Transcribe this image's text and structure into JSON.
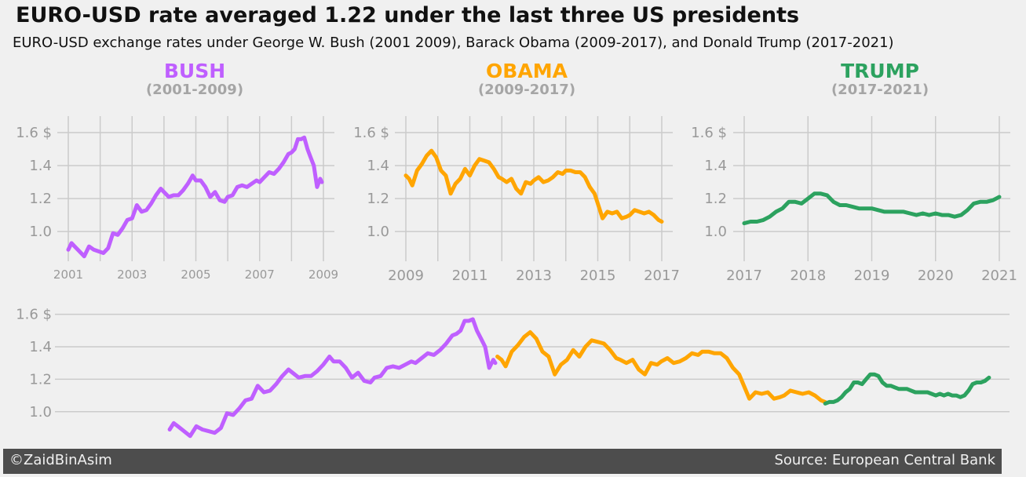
{
  "title": "EURO-USD rate averaged 1.22 under the last three US presidents",
  "subtitle": "EURO-USD exchange rates under George W. Bush (2001 2009), Barack Obama (2009-2017), and Donald Trump (2017-2021)",
  "footer": {
    "credit": "©ZaidBinAsim",
    "source": "Source: European Central Bank"
  },
  "colors": {
    "background": "#f0f0f0",
    "grid": "#cbcbcb",
    "tick": "#999999",
    "subheading": "#a5a5a5",
    "footer_bg": "#4d4d4d",
    "footer_text": "#f0f0f0",
    "bush": "#bf5fff",
    "obama": "#ffa500",
    "trump": "#2ca25f"
  },
  "chart_data": [
    {
      "type": "line",
      "panel": "bush",
      "heading": "BUSH",
      "subheading": "(2001-2009)",
      "color": "#bf5fff",
      "xlim": [
        2001,
        2009
      ],
      "ylim": [
        0.82,
        1.7
      ],
      "yticks": [
        "1.0",
        "1.2",
        "1.4",
        "1.6 $"
      ],
      "xticks": [
        "2001",
        "2003",
        "2005",
        "2007",
        "2009"
      ],
      "grid": true,
      "x": [
        2001.0,
        2001.1,
        2001.2,
        2001.35,
        2001.5,
        2001.65,
        2001.8,
        2001.95,
        2002.1,
        2002.25,
        2002.4,
        2002.55,
        2002.7,
        2002.85,
        2003.0,
        2003.15,
        2003.3,
        2003.45,
        2003.6,
        2003.75,
        2003.9,
        2004.0,
        2004.15,
        2004.3,
        2004.45,
        2004.6,
        2004.75,
        2004.9,
        2005.0,
        2005.15,
        2005.3,
        2005.45,
        2005.6,
        2005.75,
        2005.9,
        2006.0,
        2006.15,
        2006.3,
        2006.45,
        2006.6,
        2006.75,
        2006.9,
        2007.0,
        2007.15,
        2007.3,
        2007.45,
        2007.6,
        2007.75,
        2007.9,
        2008.0,
        2008.1,
        2008.2,
        2008.3,
        2008.4,
        2008.5,
        2008.6,
        2008.7,
        2008.8,
        2008.9,
        2008.95
      ],
      "y": [
        0.89,
        0.93,
        0.91,
        0.88,
        0.85,
        0.91,
        0.89,
        0.88,
        0.87,
        0.9,
        0.99,
        0.98,
        1.02,
        1.07,
        1.08,
        1.16,
        1.12,
        1.13,
        1.17,
        1.22,
        1.26,
        1.24,
        1.21,
        1.22,
        1.22,
        1.25,
        1.29,
        1.34,
        1.31,
        1.31,
        1.27,
        1.21,
        1.24,
        1.19,
        1.18,
        1.21,
        1.22,
        1.27,
        1.28,
        1.27,
        1.29,
        1.31,
        1.3,
        1.33,
        1.36,
        1.35,
        1.38,
        1.42,
        1.47,
        1.48,
        1.5,
        1.56,
        1.56,
        1.57,
        1.5,
        1.45,
        1.4,
        1.27,
        1.32,
        1.3
      ]
    },
    {
      "type": "line",
      "panel": "obama",
      "heading": "OBAMA",
      "subheading": "(2009-2017)",
      "color": "#ffa500",
      "xlim": [
        2009,
        2017
      ],
      "ylim": [
        0.82,
        1.7
      ],
      "yticks": [
        "1.0",
        "1.2",
        "1.4",
        "1.6 $"
      ],
      "xticks": [
        "2009",
        "2011",
        "2013",
        "2015",
        "2017"
      ],
      "grid": true,
      "x": [
        2009.0,
        2009.1,
        2009.2,
        2009.35,
        2009.5,
        2009.65,
        2009.8,
        2009.95,
        2010.1,
        2010.25,
        2010.4,
        2010.55,
        2010.7,
        2010.85,
        2011.0,
        2011.15,
        2011.3,
        2011.45,
        2011.6,
        2011.75,
        2011.9,
        2012.0,
        2012.15,
        2012.3,
        2012.45,
        2012.6,
        2012.75,
        2012.9,
        2013.0,
        2013.15,
        2013.3,
        2013.45,
        2013.6,
        2013.75,
        2013.9,
        2014.0,
        2014.15,
        2014.3,
        2014.45,
        2014.6,
        2014.75,
        2014.9,
        2015.0,
        2015.15,
        2015.3,
        2015.45,
        2015.6,
        2015.75,
        2015.9,
        2016.0,
        2016.15,
        2016.3,
        2016.45,
        2016.6,
        2016.75,
        2016.9,
        2017.0
      ],
      "y": [
        1.34,
        1.32,
        1.28,
        1.37,
        1.41,
        1.46,
        1.49,
        1.45,
        1.37,
        1.34,
        1.23,
        1.29,
        1.32,
        1.38,
        1.34,
        1.4,
        1.44,
        1.43,
        1.42,
        1.38,
        1.33,
        1.32,
        1.3,
        1.32,
        1.26,
        1.23,
        1.3,
        1.29,
        1.31,
        1.33,
        1.3,
        1.31,
        1.33,
        1.36,
        1.35,
        1.37,
        1.37,
        1.36,
        1.36,
        1.33,
        1.27,
        1.23,
        1.17,
        1.08,
        1.12,
        1.11,
        1.12,
        1.08,
        1.09,
        1.1,
        1.13,
        1.12,
        1.11,
        1.12,
        1.1,
        1.07,
        1.06
      ]
    },
    {
      "type": "line",
      "panel": "trump",
      "heading": "TRUMP",
      "subheading": "(2017-2021)",
      "color": "#2ca25f",
      "xlim": [
        2017,
        2021
      ],
      "ylim": [
        0.82,
        1.7
      ],
      "yticks": [
        "1.0",
        "1.2",
        "1.4",
        "1.6 $"
      ],
      "xticks": [
        "2017",
        "2018",
        "2019",
        "2020",
        "2021"
      ],
      "grid": true,
      "x": [
        2017.0,
        2017.1,
        2017.2,
        2017.3,
        2017.4,
        2017.5,
        2017.6,
        2017.7,
        2017.8,
        2017.9,
        2018.0,
        2018.1,
        2018.2,
        2018.3,
        2018.4,
        2018.5,
        2018.6,
        2018.7,
        2018.8,
        2018.9,
        2019.0,
        2019.1,
        2019.2,
        2019.3,
        2019.4,
        2019.5,
        2019.6,
        2019.7,
        2019.8,
        2019.9,
        2020.0,
        2020.1,
        2020.2,
        2020.3,
        2020.4,
        2020.5,
        2020.6,
        2020.7,
        2020.8,
        2020.9,
        2021.0
      ],
      "y": [
        1.05,
        1.06,
        1.06,
        1.07,
        1.09,
        1.12,
        1.14,
        1.18,
        1.18,
        1.17,
        1.2,
        1.23,
        1.23,
        1.22,
        1.18,
        1.16,
        1.16,
        1.15,
        1.14,
        1.14,
        1.14,
        1.13,
        1.12,
        1.12,
        1.12,
        1.12,
        1.11,
        1.1,
        1.11,
        1.1,
        1.11,
        1.1,
        1.1,
        1.09,
        1.1,
        1.13,
        1.17,
        1.18,
        1.18,
        1.19,
        1.21
      ]
    },
    {
      "type": "line",
      "panel": "combined",
      "ylim": [
        0.82,
        1.7
      ],
      "yticks": [
        "1.0",
        "1.2",
        "1.4",
        "1.6 $"
      ],
      "xlim": [
        1998.2,
        2021.5
      ],
      "xticks": [],
      "grid": true,
      "series_refs": [
        "bush",
        "obama",
        "trump"
      ]
    }
  ]
}
